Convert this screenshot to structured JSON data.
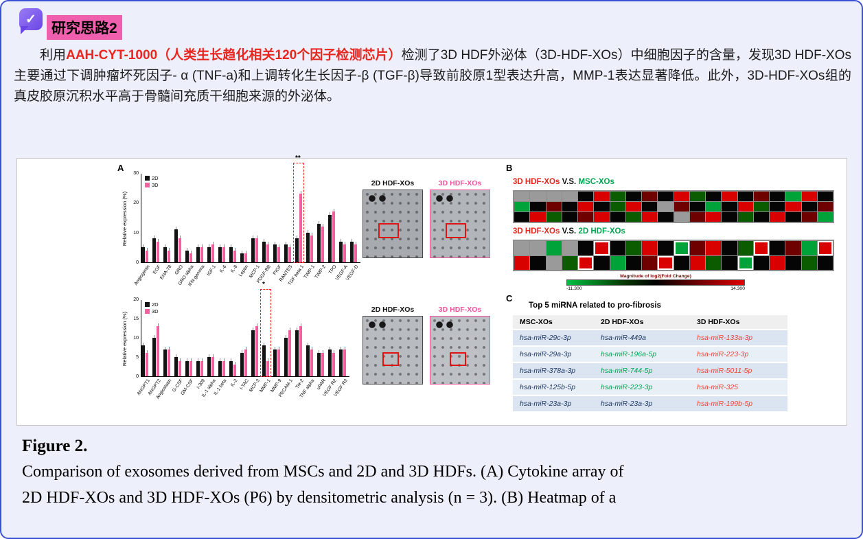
{
  "header": {
    "title": "研究思路2"
  },
  "paragraph": {
    "segments": [
      {
        "text": "利用",
        "style": "normal"
      },
      {
        "text": "AAH-CYT-1000（人类生长趋化相关120个因子检测芯片）",
        "style": "red-bold"
      },
      {
        "text": "检测了3D HDF外泌体（3D-HDF-XOs）中细胞因子的含量，发现3D HDF-XOs主要通过下调肿瘤坏死因子- α (TNF-a)和上调转化生长因子-β (TGF-β)导致前胶原1型表达升高，MMP-1表达显著降低。此外，3D-HDF-XOs组的真皮胶原沉积水平高于骨髓间充质干细胞来源的外泌体。",
        "style": "normal"
      }
    ]
  },
  "figure": {
    "panelA": {
      "label": "A",
      "blots_top": {
        "left": "2D HDF-XOs",
        "right": "3D HDF-XOs"
      },
      "blots_bottom": {
        "left": "2D HDF-XOs",
        "right": "3D HDF-XOs"
      }
    },
    "panelB": {
      "label": "B",
      "title1": [
        {
          "text": "3D HDF-XOs",
          "color": "#e8251f"
        },
        {
          "text": " V.S. ",
          "color": "#111111"
        },
        {
          "text": "MSC-XOs",
          "color": "#00a651"
        }
      ],
      "title2": [
        {
          "text": "3D HDF-XOs",
          "color": "#e8251f"
        },
        {
          "text": " V.S. ",
          "color": "#111111"
        },
        {
          "text": "2D HDF-XOs",
          "color": "#00a651"
        }
      ],
      "scale": {
        "label": "Magnitude of log2(Fold Change)",
        "min": "-11.300",
        "max": "14.300"
      }
    },
    "panelC": {
      "label": "C",
      "title": "Top 5 miRNA related to pro-fibrosis",
      "columns": [
        "MSC-XOs",
        "2D HDF-XOs",
        "3D HDF-XOs"
      ],
      "rows": [
        [
          {
            "text": "hsa-miR-29c-3p",
            "color": "navy"
          },
          {
            "text": "hsa-miR-449a",
            "color": "navy"
          },
          {
            "text": "hsa-miR-133a-3p",
            "color": "red"
          }
        ],
        [
          {
            "text": "hsa-miR-29a-3p",
            "color": "navy"
          },
          {
            "text": "hsa-miR-196a-5p",
            "color": "green"
          },
          {
            "text": "hsa-miR-223-3p",
            "color": "red"
          }
        ],
        [
          {
            "text": "hsa-miR-378a-3p",
            "color": "navy"
          },
          {
            "text": "hsa-miR-744-5p",
            "color": "green"
          },
          {
            "text": "hsa-miR-5011-5p",
            "color": "red"
          }
        ],
        [
          {
            "text": "hsa-miR-125b-5p",
            "color": "navy"
          },
          {
            "text": "hsa-miR-223-3p",
            "color": "green"
          },
          {
            "text": "hsa-miR-325",
            "color": "red"
          }
        ],
        [
          {
            "text": "hsa-miR-23a-3p",
            "color": "navy"
          },
          {
            "text": "hsa-miR-23a-3p",
            "color": "navy"
          },
          {
            "text": "hsa-miR-199b-5p",
            "color": "red"
          }
        ]
      ]
    }
  },
  "caption": {
    "label": "Figure 2.",
    "lines": [
      "Comparison of exosomes derived from MSCs and 2D and 3D HDFs. (A) Cytokine array of",
      "2D HDF-XOs and 3D HDF-XOs (P6) by densitometric analysis (n = 3). (B) Heatmap of a"
    ]
  },
  "chart_data": [
    {
      "type": "bar",
      "title": "Cytokine array panel 1",
      "ylabel": "Relative expression (%)",
      "ylim": [
        0,
        30
      ],
      "yticks": [
        0,
        10,
        20,
        30
      ],
      "legend_position": "top-left",
      "colors": {
        "2D": "#141414",
        "3D": "#f4609f"
      },
      "categories": [
        "Angiogenin",
        "EGF",
        "ENA-78",
        "GRO",
        "GRO alpha",
        "IFN-gamma",
        "IGF-1",
        "IL-6",
        "IL-8",
        "Leptin",
        "MCP-1",
        "PDGF-BB",
        "PIGF",
        "RANTES",
        "TGF beta 1",
        "TIMP-1",
        "TIMP-2",
        "TPO",
        "VEGF-A",
        "VEGF-D"
      ],
      "series": [
        {
          "name": "2D",
          "values": [
            5,
            8,
            5,
            11,
            4,
            5,
            5,
            5,
            5,
            3,
            8,
            7,
            6,
            6,
            8,
            10,
            13,
            16,
            7,
            7
          ]
        },
        {
          "name": "3D",
          "values": [
            4,
            7,
            4,
            8,
            3,
            5,
            6,
            5,
            4,
            3,
            8,
            6,
            5,
            5,
            23,
            9,
            12,
            17,
            6,
            6
          ]
        }
      ],
      "highlight": {
        "category": "TGF beta 1",
        "marker": "**"
      }
    },
    {
      "type": "bar",
      "title": "Cytokine array panel 2",
      "ylabel": "Relative expression (%)",
      "ylim": [
        0,
        20
      ],
      "yticks": [
        0,
        5,
        10,
        15,
        20
      ],
      "legend_position": "top-left",
      "colors": {
        "2D": "#141414",
        "3D": "#f4609f"
      },
      "categories": [
        "ANGPT1",
        "ANGPT2",
        "Angiostatin",
        "G-CSF",
        "GM-CSF",
        "I-309",
        "IL-1 alpha",
        "IL-1 beta",
        "IL-2",
        "I-TAC",
        "MCP-3",
        "MMP-1",
        "MMP-9",
        "PECAM-1",
        "Tie-2",
        "TNF alpha",
        "uPAR",
        "VEGF R2",
        "VEGF R3"
      ],
      "series": [
        {
          "name": "2D",
          "values": [
            8,
            10,
            7,
            5,
            4,
            4,
            5,
            4,
            4,
            6,
            12,
            8,
            7,
            10,
            12,
            8,
            6,
            7,
            7
          ]
        },
        {
          "name": "3D",
          "values": [
            6,
            13,
            7,
            4,
            4,
            4,
            5,
            4,
            3,
            7,
            13,
            4,
            7,
            12,
            13,
            7,
            6,
            6,
            7
          ]
        }
      ],
      "highlight": {
        "category": "MMP-1",
        "marker": "*"
      }
    },
    {
      "type": "heatmap",
      "title": "3D HDF-XOs V.S. MSC-XOs",
      "scale_label": "Magnitude of log2(Fold Change)",
      "scale_min": -11.3,
      "scale_max": 14.3,
      "cell_legend": "e=gray k=black R=bright-red r=dark-red G=green g=dark-green o=white-outline",
      "cells": [
        [
          "e",
          "e",
          "e",
          "e",
          "k",
          "R",
          "g",
          "k",
          "r",
          "k",
          "R",
          "g",
          "k",
          "R",
          "k",
          "r",
          "k",
          "G",
          "R",
          "k"
        ],
        [
          "G",
          "k",
          "r",
          "k",
          "R",
          "k",
          "g",
          "R",
          "k",
          "e",
          "r",
          "k",
          "G",
          "k",
          "R",
          "g",
          "k",
          "R",
          "k",
          "r"
        ],
        [
          "k",
          "R",
          "g",
          "k",
          "r",
          "R",
          "k",
          "g",
          "R",
          "k",
          "e",
          "r",
          "R",
          "k",
          "g",
          "k",
          "R",
          "k",
          "r",
          "G"
        ]
      ]
    },
    {
      "type": "heatmap",
      "title": "3D HDF-XOs V.S. 2D HDF-XOs",
      "scale_label": "Magnitude of log2(Fold Change)",
      "scale_min": -11.3,
      "scale_max": 14.3,
      "cells": [
        [
          "e",
          "e",
          "G",
          "e",
          "k",
          "Ro",
          "k",
          "g",
          "R",
          "k",
          "Go",
          "r",
          "R",
          "k",
          "g",
          "Ro",
          "k",
          "r",
          "G",
          "Ro"
        ],
        [
          "R",
          "k",
          "e",
          "g",
          "Ro",
          "k",
          "G",
          "k",
          "r",
          "Ro",
          "k",
          "R",
          "g",
          "k",
          "Go",
          "k",
          "R",
          "k",
          "g",
          "k"
        ]
      ]
    }
  ]
}
